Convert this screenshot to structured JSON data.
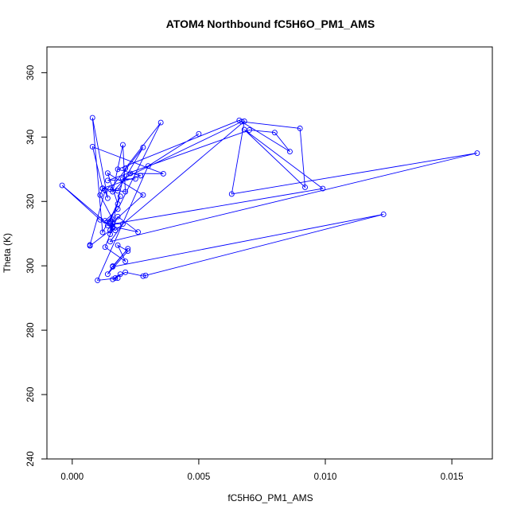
{
  "chart_data": {
    "type": "line",
    "title": "ATOM4 Northbound fC5H6O_PM1_AMS",
    "xlabel": "fC5H6O_PM1_AMS",
    "ylabel": "Theta (K)",
    "xlim": [
      -0.001,
      0.0166
    ],
    "ylim": [
      240,
      368
    ],
    "x_ticks": [
      0.0,
      0.005,
      0.01,
      0.015
    ],
    "x_tick_labels": [
      "0.000",
      "0.005",
      "0.010",
      "0.015"
    ],
    "y_ticks": [
      240,
      260,
      280,
      300,
      320,
      340,
      360
    ],
    "y_tick_labels": [
      "240",
      "260",
      "280",
      "300",
      "320",
      "340",
      "360"
    ],
    "grid": false,
    "line_color": "#0000ff",
    "marker": "open-circle",
    "series": [
      {
        "x": [
          0.005,
          0.003,
          0.001,
          0.0018,
          0.0016,
          0.0019,
          0.0017,
          0.0021,
          0.0028,
          0.0029,
          0.0123,
          0.0016,
          0.0022,
          0.0016,
          0.0014,
          0.0022,
          0.0018,
          0.0021,
          0.0013,
          0.0016,
          0.0018,
          0.0026,
          0.0014,
          0.0019,
          0.0015,
          0.0013,
          0.0018,
          0.0035,
          0.0021,
          0.0015,
          0.0016,
          0.0028,
          0.0014,
          0.0018,
          0.0012,
          0.0008,
          0.0014,
          0.0013,
          0.0007,
          0.0007,
          0.0015,
          0.0016,
          0.0011,
          0.0012,
          0.0018,
          0.0028,
          0.0015,
          0.0021,
          0.002,
          0.0016,
          0.0023,
          0.0036,
          0.0008,
          0.0012,
          0.0027,
          0.0018,
          0.0066,
          0.0086,
          0.008,
          0.007,
          0.0014,
          0.0025,
          0.002,
          0.0067,
          0.009,
          0.0092,
          0.0068,
          0.0099,
          0.0016,
          0.002,
          0.0015,
          0.016,
          0.0063,
          0.0068,
          0.0017,
          -0.0004,
          0.0011,
          0.0016
        ],
        "y": [
          341.0,
          331.0,
          295.5,
          296.2,
          295.8,
          297.4,
          296.2,
          298.0,
          296.8,
          297.0,
          316.0,
          299.7,
          305.3,
          299.9,
          297.4,
          304.6,
          306.4,
          301.4,
          305.8,
          311.8,
          315.3,
          310.5,
          312.5,
          321.6,
          313.8,
          314.0,
          317.6,
          344.5,
          330.3,
          309.8,
          313.5,
          322.0,
          328.8,
          319.2,
          310.4,
          346.0,
          321.0,
          323.4,
          306.5,
          306.2,
          311.0,
          314.4,
          322.0,
          324.0,
          323.3,
          336.8,
          323.8,
          323.0,
          337.6,
          323.0,
          328.7,
          328.6,
          337.0,
          324.1,
          328.0,
          330.0,
          345.2,
          335.5,
          341.4,
          342.2,
          326.5,
          327.0,
          327.0,
          344.8,
          342.7,
          324.4,
          342.3,
          324.0,
          313.0,
          313.0,
          307.5,
          335.0,
          322.3,
          344.9,
          311.0,
          325.0,
          314.3,
          312.0
        ]
      }
    ]
  }
}
